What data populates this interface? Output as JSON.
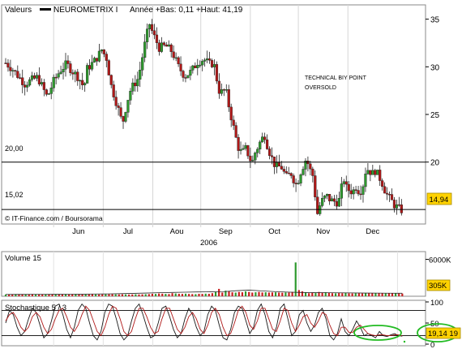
{
  "header": {
    "label": "Valeurs",
    "symbol": "NEUROMETRIX I",
    "stats": "Année +Bas: 0,11 +Haut: 41,19"
  },
  "annotation": [
    "TECHNICAL BIY POINT",
    "OVERSOLD"
  ],
  "watermark": "© IT-Finance.com / Boursorama",
  "colors": {
    "up": "#2e9a2e",
    "down": "#b01818",
    "volume_bar": "#c82020",
    "volume_avg": "#2a2a2a",
    "stoch_k": "#1a1a1a",
    "stoch_d": "#b01818",
    "highlight_ellipse": "#22bb22",
    "last_price_box": "#ffd200"
  },
  "chart_data": [
    {
      "type": "candlestick",
      "name": "price",
      "ylim": [
        13.5,
        36.5
      ],
      "yticks": [
        35,
        30,
        25,
        20
      ],
      "xtick_labels": [
        "Jun",
        "Jul",
        "Aou",
        "Sep",
        "Oct",
        "Nov",
        "Dec"
      ],
      "year_label": "2006",
      "reference_lines": [
        {
          "value": 20.0,
          "label": "20,00"
        },
        {
          "value": 15.02,
          "label": "15,02"
        }
      ],
      "last_price": {
        "value": 14.94,
        "label": "14,94"
      },
      "series_close": [
        [
          0,
          30.4
        ],
        [
          4,
          29.8
        ],
        [
          8,
          29.0
        ],
        [
          12,
          28.2
        ],
        [
          16,
          28.6
        ],
        [
          20,
          28.9
        ],
        [
          24,
          27.5
        ],
        [
          26,
          26.8
        ],
        [
          30,
          28.5
        ],
        [
          34,
          29.6
        ],
        [
          38,
          30.3
        ],
        [
          42,
          29.5
        ],
        [
          46,
          28.8
        ],
        [
          49,
          27.8
        ],
        [
          51,
          29.8
        ],
        [
          55,
          30.5
        ],
        [
          58,
          31.2
        ],
        [
          60,
          31.8
        ],
        [
          63,
          30.9
        ],
        [
          66,
          28.0
        ],
        [
          70,
          25.8
        ],
        [
          73,
          24.0
        ],
        [
          76,
          26.4
        ],
        [
          78,
          27.5
        ],
        [
          80,
          28.1
        ],
        [
          83,
          28.8
        ],
        [
          86,
          31.5
        ],
        [
          88,
          33.2
        ],
        [
          90,
          34.5
        ],
        [
          92,
          33.5
        ],
        [
          96,
          32.0
        ],
        [
          100,
          32.2
        ],
        [
          104,
          31.6
        ],
        [
          108,
          30.0
        ],
        [
          112,
          29.0
        ],
        [
          116,
          29.5
        ],
        [
          120,
          30.5
        ],
        [
          124,
          30.8
        ],
        [
          128,
          30.2
        ],
        [
          130,
          30.5
        ],
        [
          132,
          28.7
        ],
        [
          134,
          27.1
        ],
        [
          136,
          27.6
        ],
        [
          138,
          27.2
        ],
        [
          140,
          25.5
        ],
        [
          142,
          24.0
        ],
        [
          144,
          22.5
        ],
        [
          146,
          21.2
        ],
        [
          148,
          21.0
        ],
        [
          150,
          21.4
        ],
        [
          152,
          20.7
        ],
        [
          154,
          19.8
        ],
        [
          156,
          21.0
        ],
        [
          158,
          21.7
        ],
        [
          160,
          22.4
        ],
        [
          162,
          22.8
        ],
        [
          164,
          21.5
        ],
        [
          166,
          20.6
        ],
        [
          168,
          19.8
        ],
        [
          170,
          19.4
        ],
        [
          172,
          19.6
        ],
        [
          174,
          18.9
        ],
        [
          176,
          18.3
        ],
        [
          178,
          19.0
        ],
        [
          180,
          18.2
        ],
        [
          182,
          17.5
        ],
        [
          184,
          18.8
        ],
        [
          186,
          19.6
        ],
        [
          188,
          20.4
        ],
        [
          190,
          19.3
        ],
        [
          192,
          18.6
        ],
        [
          193,
          17.2
        ],
        [
          195,
          14.6
        ],
        [
          197,
          15.7
        ],
        [
          199,
          16.2
        ],
        [
          201,
          16.4
        ],
        [
          203,
          16.0
        ],
        [
          205,
          15.9
        ],
        [
          207,
          15.8
        ],
        [
          209,
          16.1
        ],
        [
          211,
          18.5
        ],
        [
          213,
          17.3
        ],
        [
          215,
          17.0
        ],
        [
          217,
          16.9
        ],
        [
          219,
          17.4
        ],
        [
          221,
          16.9
        ],
        [
          223,
          17.2
        ],
        [
          225,
          19.0
        ],
        [
          227,
          19.3
        ],
        [
          229,
          18.7
        ],
        [
          231,
          19.1
        ],
        [
          233,
          18.6
        ],
        [
          235,
          18.0
        ],
        [
          237,
          17.1
        ],
        [
          239,
          16.4
        ],
        [
          241,
          16.0
        ],
        [
          243,
          15.5
        ],
        [
          246,
          15.1
        ],
        [
          248,
          14.9
        ]
      ]
    },
    {
      "type": "bar",
      "name": "Volume 15",
      "label": "Volume 15",
      "yticks": [
        {
          "value": 6000,
          "label": "6000K"
        }
      ],
      "ylim": [
        0,
        7000
      ],
      "last_value": {
        "value": 305,
        "label": "305K"
      },
      "values": [
        280,
        300,
        260,
        340,
        320,
        310,
        300,
        290,
        350,
        330,
        320,
        310,
        300,
        290,
        310,
        320,
        300,
        290,
        320,
        300,
        310,
        330,
        300,
        280,
        300,
        310,
        320,
        300,
        290,
        300,
        310,
        320,
        330,
        310,
        300,
        320,
        300,
        290,
        300,
        320,
        300,
        310,
        330,
        350,
        400,
        380,
        450,
        420,
        380,
        360,
        500,
        450,
        400,
        380,
        420,
        380,
        350,
        340,
        400,
        380,
        420,
        400,
        500,
        700,
        1200,
        600,
        900,
        800,
        650,
        600,
        700,
        650,
        800,
        700,
        600,
        650,
        700,
        620,
        650,
        600,
        620,
        640,
        600,
        580,
        620,
        600,
        700,
        5500,
        1000,
        800,
        600,
        500,
        550,
        520,
        700,
        600,
        650,
        550,
        500,
        480,
        520,
        500,
        550,
        480,
        460,
        500,
        480,
        450,
        460,
        480,
        500,
        520,
        480,
        460,
        450,
        470,
        480,
        460,
        450,
        440
      ],
      "moving_average": [
        300,
        305,
        310,
        315,
        320,
        330,
        340,
        360,
        380,
        420,
        470,
        520,
        580,
        620,
        660,
        700,
        720,
        740,
        900,
        1000,
        880,
        760,
        680,
        620,
        600,
        580,
        560,
        540,
        520,
        510,
        500,
        490
      ]
    },
    {
      "type": "line",
      "name": "Stochastique",
      "label": "Stochastique 5 / 3",
      "ylim": [
        0,
        100
      ],
      "yticks": [
        {
          "value": 100,
          "label": "100"
        },
        {
          "value": 50,
          "label": "50"
        },
        {
          "value": 0,
          "label": "0"
        }
      ],
      "reference_lines": [
        80,
        20
      ],
      "last_value": {
        "label": "19,14 19"
      },
      "series": [
        {
          "name": "%K",
          "values": [
            50,
            80,
            70,
            40,
            20,
            30,
            60,
            85,
            75,
            45,
            15,
            25,
            55,
            90,
            95,
            70,
            35,
            15,
            40,
            80,
            95,
            85,
            50,
            20,
            10,
            30,
            75,
            95,
            90,
            60,
            25,
            10,
            20,
            55,
            85,
            95,
            70,
            40,
            15,
            20,
            50,
            85,
            90,
            65,
            35,
            15,
            25,
            60,
            85,
            70,
            40,
            20,
            30,
            70,
            90,
            80,
            45,
            15,
            10,
            35,
            75,
            90,
            85,
            55,
            25,
            40,
            80,
            95,
            70,
            30,
            15,
            40,
            85,
            95,
            60,
            20,
            30,
            70,
            80,
            50,
            30,
            45,
            75,
            85,
            60,
            20,
            10,
            25,
            60,
            30,
            20,
            35,
            55,
            40,
            20,
            25,
            20,
            15,
            30,
            20,
            18,
            22,
            25,
            20,
            19
          ]
        },
        {
          "name": "%D",
          "values": [
            55,
            70,
            75,
            60,
            40,
            30,
            40,
            65,
            75,
            65,
            40,
            25,
            35,
            60,
            80,
            85,
            65,
            40,
            30,
            45,
            70,
            90,
            80,
            55,
            30,
            20,
            40,
            70,
            90,
            85,
            60,
            30,
            20,
            30,
            60,
            85,
            85,
            65,
            40,
            25,
            30,
            60,
            85,
            85,
            60,
            35,
            25,
            40,
            65,
            75,
            60,
            35,
            25,
            45,
            75,
            85,
            70,
            40,
            20,
            25,
            50,
            80,
            90,
            75,
            45,
            35,
            55,
            85,
            85,
            60,
            35,
            30,
            55,
            85,
            80,
            50,
            30,
            45,
            65,
            70,
            50,
            40,
            55,
            75,
            70,
            45,
            25,
            20,
            40,
            40,
            28,
            28,
            40,
            45,
            35,
            25,
            22,
            20,
            22,
            22,
            20,
            20,
            22,
            22,
            20
          ]
        }
      ]
    }
  ]
}
